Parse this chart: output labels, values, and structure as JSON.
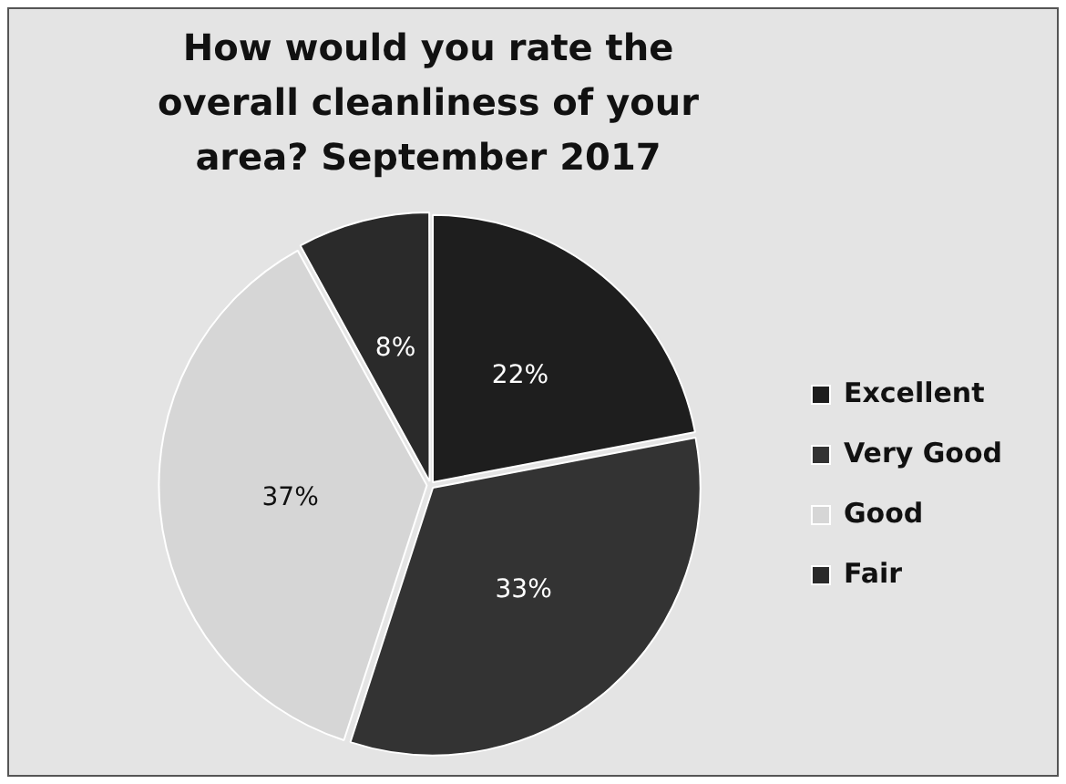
{
  "chart_data": {
    "type": "pie",
    "title": "How would you rate the overall cleanliness of your area? September 2017",
    "categories": [
      "Excellent",
      "Very Good",
      "Good",
      "Fair"
    ],
    "values": [
      22,
      33,
      37,
      8
    ],
    "colors": [
      "#1e1e1e",
      "#333333",
      "#d6d6d6",
      "#2a2a2a"
    ],
    "value_labels": [
      "22%",
      "33%",
      "37%",
      "8%"
    ],
    "legend": "right"
  }
}
